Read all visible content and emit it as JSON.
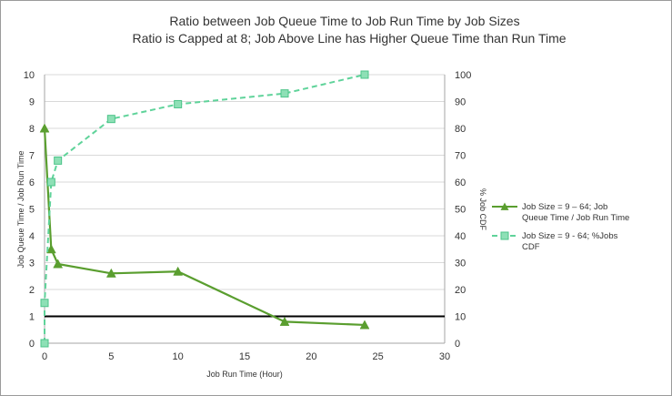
{
  "chart_data": {
    "type": "line",
    "title": "Ratio between Job Queue Time to Job Run Time by Job Sizes",
    "subtitle": "Ratio is Capped at 8; Job Above Line has Higher Queue Time than Run Time",
    "xlabel": "Job Run Time (Hour)",
    "ylabel_left": "Job Queue Time / Job Run Time",
    "ylabel_right": "% Job CDF",
    "xlim": [
      0,
      30
    ],
    "ylim_left": [
      0,
      10
    ],
    "ylim_right": [
      0,
      100
    ],
    "x_ticks": [
      "0",
      "5",
      "10",
      "15",
      "20",
      "25",
      "30"
    ],
    "y_left_ticks": [
      "0",
      "1",
      "2",
      "3",
      "4",
      "5",
      "6",
      "7",
      "8",
      "9",
      "10"
    ],
    "y_right_ticks": [
      "0",
      "10",
      "20",
      "30",
      "40",
      "50",
      "60",
      "70",
      "80",
      "90",
      "100"
    ],
    "grid": true,
    "legend_position": "right",
    "reference_line": {
      "y": 1,
      "axis": "left",
      "color": "#000000"
    },
    "series": [
      {
        "name": [
          "Job Size =  9 – 64; Job",
          "Queue Time / Job Run Time"
        ],
        "axis": "left",
        "style": "solid",
        "marker": "triangle",
        "color": "#5a9e2f",
        "x": [
          0,
          0.5,
          1,
          5,
          10,
          18,
          24
        ],
        "y": [
          8.0,
          3.5,
          2.95,
          2.6,
          2.67,
          0.8,
          0.68
        ]
      },
      {
        "name": [
          "Job Size =  9 - 64; %Jobs",
          "CDF"
        ],
        "axis": "right",
        "style": "dashed",
        "marker": "square",
        "color": "#5fd39a",
        "x": [
          0,
          0,
          0.5,
          1,
          5,
          10,
          18,
          24
        ],
        "y": [
          0,
          15,
          60,
          68,
          83.5,
          89,
          93,
          100
        ]
      }
    ]
  }
}
